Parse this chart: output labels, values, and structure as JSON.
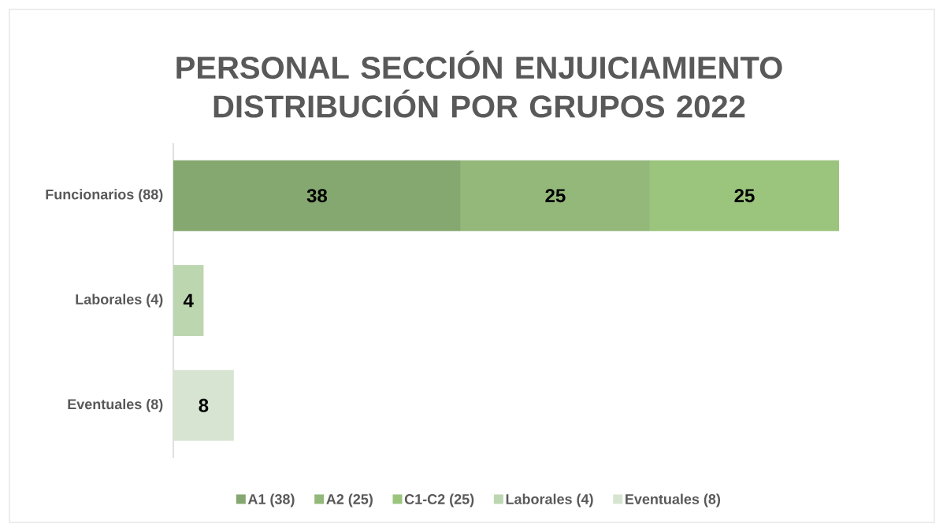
{
  "chart_data": {
    "type": "bar",
    "orientation": "horizontal",
    "stacked": true,
    "title": "PERSONAL SECCIÓN ENJUICIAMIENTO DISTRIBUCIÓN POR GRUPOS 2022",
    "categories": [
      "Funcionarios (88)",
      "Laborales (4)",
      "Eventuales (8)"
    ],
    "series": [
      {
        "name": "A1 (38)",
        "color": "#85a870",
        "values": [
          38,
          null,
          null
        ]
      },
      {
        "name": "A2 (25)",
        "color": "#93b87a",
        "values": [
          25,
          null,
          null
        ]
      },
      {
        "name": "C1-C2 (25)",
        "color": "#9bc47d",
        "values": [
          25,
          null,
          null
        ]
      },
      {
        "name": "Laborales (4)",
        "color": "#bcd6b0",
        "values": [
          null,
          4,
          null
        ]
      },
      {
        "name": "Eventuales (8)",
        "color": "#d7e4d1",
        "values": [
          null,
          null,
          8
        ]
      }
    ],
    "data_labels": true,
    "legend": "bottom"
  }
}
